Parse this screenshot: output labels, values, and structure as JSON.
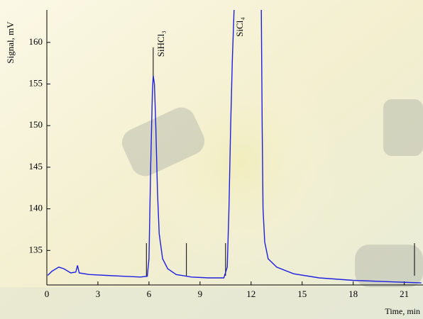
{
  "chart_data": {
    "type": "line",
    "ylabel": "Signal, mV",
    "xlabel": "Time, min",
    "x": [
      0.05,
      0.3,
      0.7,
      1.0,
      1.4,
      1.7,
      1.8,
      1.9,
      2.5,
      3.5,
      4.5,
      5.5,
      5.9,
      6.0,
      6.1,
      6.2,
      6.25,
      6.32,
      6.4,
      6.5,
      6.6,
      6.8,
      7.1,
      7.6,
      8.5,
      9.5,
      10.4,
      10.6,
      10.7,
      10.8,
      10.9,
      11.0,
      11.8,
      12.6,
      12.65,
      12.7,
      12.8,
      13.0,
      13.5,
      14.5,
      16,
      18,
      20,
      22
    ],
    "series": [
      {
        "color": "#1f1fe0",
        "values": [
          132.0,
          132.5,
          133.0,
          132.8,
          132.3,
          132.4,
          133.2,
          132.3,
          132.1,
          132.0,
          131.9,
          131.8,
          131.9,
          134,
          145,
          154,
          156,
          155,
          150,
          142,
          137,
          134,
          132.8,
          132.1,
          131.8,
          131.7,
          131.7,
          133,
          140,
          150,
          158,
          163.9,
          null,
          163.9,
          150,
          140,
          136,
          134,
          133,
          132.2,
          131.7,
          131.4,
          131.25,
          131.1
        ]
      }
    ],
    "markers": [
      5.85,
      8.2,
      10.5,
      21.6
    ],
    "annotations": [
      {
        "text": "SiHCl₃",
        "x": 6.25,
        "y": 156
      },
      {
        "text": "SiCl₄",
        "x": 11.6,
        "y": 163.9
      }
    ],
    "xlim": [
      0,
      22.1
    ],
    "ylim": [
      130.85,
      163.9
    ],
    "xticks": [
      0,
      3,
      6,
      9,
      12,
      15,
      18,
      21
    ],
    "yticks": [
      135,
      140,
      145,
      150,
      155,
      160
    ]
  }
}
